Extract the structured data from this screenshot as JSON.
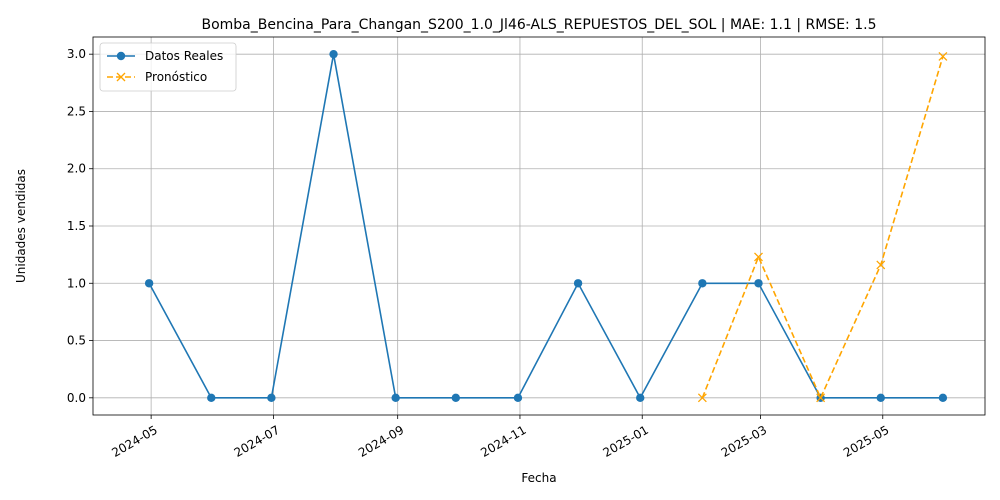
{
  "chart_data": {
    "type": "line",
    "title": "Bomba_Bencina_Para_Changan_S200_1.0_Jl46-ALS_REPUESTOS_DEL_SOL | MAE: 1.1 | RMSE: 1.5",
    "xlabel": "Fecha",
    "ylabel": "Unidades vendidas",
    "x_ticks": [
      "2024-05",
      "2024-07",
      "2024-09",
      "2024-11",
      "2025-01",
      "2025-03",
      "2025-05"
    ],
    "y_ticks": [
      "0.0",
      "0.5",
      "1.0",
      "1.5",
      "2.0",
      "2.5",
      "3.0"
    ],
    "ylim": [
      -0.15,
      3.15
    ],
    "xlim": [
      "2024-04-02",
      "2025-06-21"
    ],
    "grid": true,
    "legend_position": "upper left",
    "series": [
      {
        "name": "Datos Reales",
        "color": "#1f77b4",
        "marker": "circle",
        "line_style": "solid",
        "x": [
          "2024-04-30",
          "2024-05-31",
          "2024-06-30",
          "2024-07-31",
          "2024-08-31",
          "2024-09-30",
          "2024-10-31",
          "2024-11-30",
          "2024-12-31",
          "2025-01-31",
          "2025-02-28",
          "2025-03-31",
          "2025-04-30",
          "2025-05-31"
        ],
        "values": [
          1,
          0,
          0,
          3,
          0,
          0,
          0,
          1,
          0,
          1,
          1,
          0,
          0,
          0
        ]
      },
      {
        "name": "Pronóstico",
        "color": "#ffa500",
        "marker": "x",
        "line_style": "dashed",
        "x": [
          "2025-01-31",
          "2025-02-28",
          "2025-03-31",
          "2025-04-30",
          "2025-05-31"
        ],
        "values": [
          0.0,
          1.23,
          0.0,
          1.16,
          2.98
        ]
      }
    ]
  }
}
